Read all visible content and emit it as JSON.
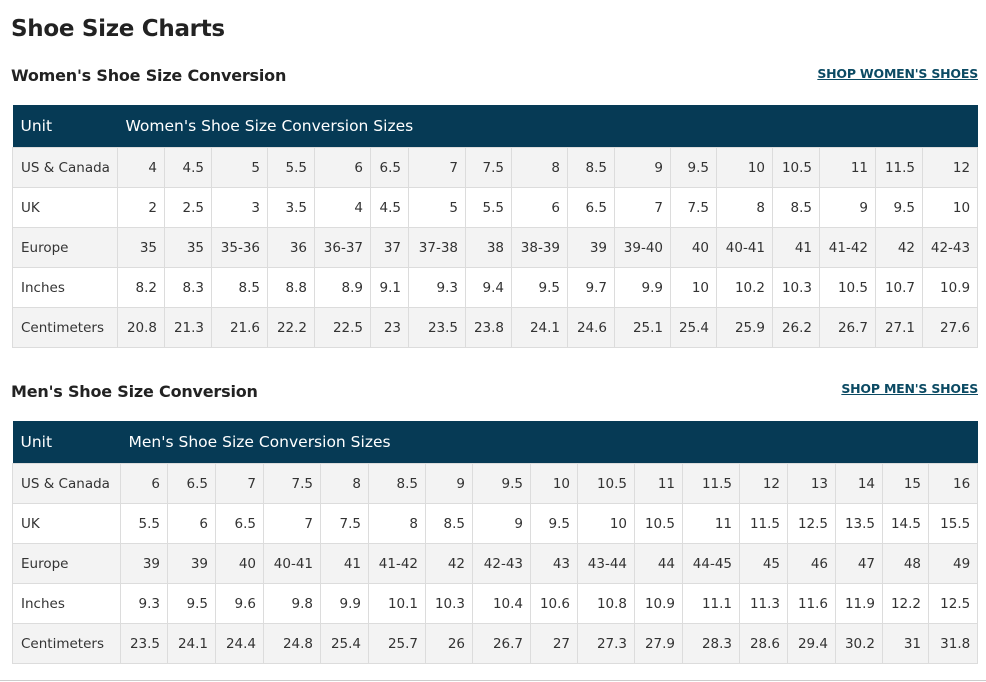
{
  "page_title": "Shoe Size Charts",
  "colors": {
    "header_bg": "#063a55",
    "link": "#0b4a63",
    "row_alt": "#f3f3f3"
  },
  "women": {
    "title": "Women's Shoe Size Conversion",
    "shop_link": "SHOP WOMEN'S SHOES",
    "header_unit": "Unit",
    "header_sizes": "Women's Shoe Size Conversion Sizes",
    "rows": [
      {
        "unit": "US & Canada",
        "values": [
          "4",
          "4.5",
          "5",
          "5.5",
          "6",
          "6.5",
          "7",
          "7.5",
          "8",
          "8.5",
          "9",
          "9.5",
          "10",
          "10.5",
          "11",
          "11.5",
          "12"
        ]
      },
      {
        "unit": "UK",
        "values": [
          "2",
          "2.5",
          "3",
          "3.5",
          "4",
          "4.5",
          "5",
          "5.5",
          "6",
          "6.5",
          "7",
          "7.5",
          "8",
          "8.5",
          "9",
          "9.5",
          "10"
        ]
      },
      {
        "unit": "Europe",
        "values": [
          "35",
          "35",
          "35-36",
          "36",
          "36-37",
          "37",
          "37-38",
          "38",
          "38-39",
          "39",
          "39-40",
          "40",
          "40-41",
          "41",
          "41-42",
          "42",
          "42-43"
        ]
      },
      {
        "unit": "Inches",
        "values": [
          "8.2",
          "8.3",
          "8.5",
          "8.8",
          "8.9",
          "9.1",
          "9.3",
          "9.4",
          "9.5",
          "9.7",
          "9.9",
          "10",
          "10.2",
          "10.3",
          "10.5",
          "10.7",
          "10.9"
        ]
      },
      {
        "unit": "Centimeters",
        "values": [
          "20.8",
          "21.3",
          "21.6",
          "22.2",
          "22.5",
          "23",
          "23.5",
          "23.8",
          "24.1",
          "24.6",
          "25.1",
          "25.4",
          "25.9",
          "26.2",
          "26.7",
          "27.1",
          "27.6"
        ]
      }
    ]
  },
  "men": {
    "title": "Men's Shoe Size Conversion",
    "shop_link": "SHOP MEN'S SHOES",
    "header_unit": "Unit",
    "header_sizes": "Men's Shoe Size Conversion Sizes",
    "rows": [
      {
        "unit": "US & Canada",
        "values": [
          "6",
          "6.5",
          "7",
          "7.5",
          "8",
          "8.5",
          "9",
          "9.5",
          "10",
          "10.5",
          "11",
          "11.5",
          "12",
          "13",
          "14",
          "15",
          "16"
        ]
      },
      {
        "unit": "UK",
        "values": [
          "5.5",
          "6",
          "6.5",
          "7",
          "7.5",
          "8",
          "8.5",
          "9",
          "9.5",
          "10",
          "10.5",
          "11",
          "11.5",
          "12.5",
          "13.5",
          "14.5",
          "15.5"
        ]
      },
      {
        "unit": "Europe",
        "values": [
          "39",
          "39",
          "40",
          "40-41",
          "41",
          "41-42",
          "42",
          "42-43",
          "43",
          "43-44",
          "44",
          "44-45",
          "45",
          "46",
          "47",
          "48",
          "49"
        ]
      },
      {
        "unit": "Inches",
        "values": [
          "9.3",
          "9.5",
          "9.6",
          "9.8",
          "9.9",
          "10.1",
          "10.3",
          "10.4",
          "10.6",
          "10.8",
          "10.9",
          "11.1",
          "11.3",
          "11.6",
          "11.9",
          "12.2",
          "12.5"
        ]
      },
      {
        "unit": "Centimeters",
        "values": [
          "23.5",
          "24.1",
          "24.4",
          "24.8",
          "25.4",
          "25.7",
          "26",
          "26.7",
          "27",
          "27.3",
          "27.9",
          "28.3",
          "28.6",
          "29.4",
          "30.2",
          "31",
          "31.8"
        ]
      }
    ]
  }
}
